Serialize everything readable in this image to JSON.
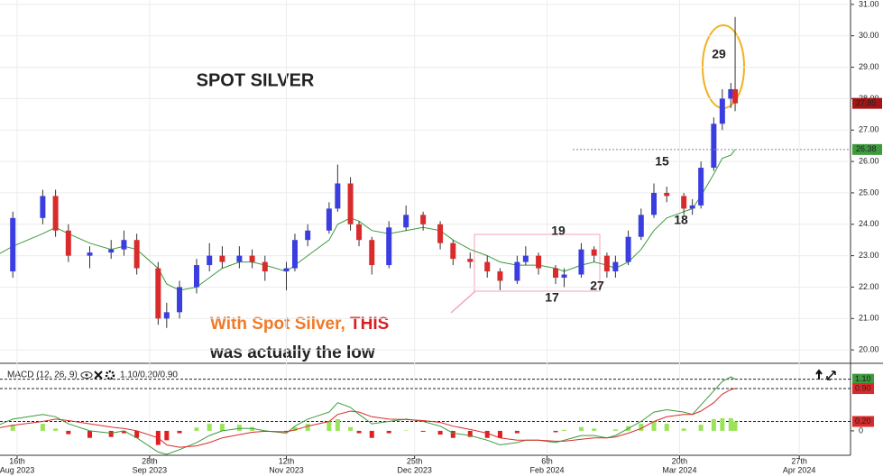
{
  "chart_data": [
    {
      "type": "candlestick",
      "title": "SPOT SILVER",
      "title_color": "#1a9ad6",
      "x": [
        "2023-08-09",
        "2023-08-15",
        "2023-08-24",
        "2023-08-29",
        "2023-09-01",
        "2023-09-08",
        "2023-09-15",
        "2023-09-20",
        "2023-09-25",
        "2023-10-02",
        "2023-10-04",
        "2023-10-09",
        "2023-10-13",
        "2023-10-18",
        "2023-10-23",
        "2023-10-27",
        "2023-11-01",
        "2023-11-06",
        "2023-11-13",
        "2023-11-15",
        "2023-11-20",
        "2023-11-27",
        "2023-11-29",
        "2023-12-04",
        "2023-12-06",
        "2023-12-11",
        "2023-12-15",
        "2023-12-21",
        "2023-12-27",
        "2024-01-02",
        "2024-01-05",
        "2024-01-11",
        "2024-01-17",
        "2024-01-22",
        "2024-01-26",
        "2024-01-30",
        "2024-02-02",
        "2024-02-08",
        "2024-02-12",
        "2024-02-16",
        "2024-02-21",
        "2024-02-26",
        "2024-02-28",
        "2024-03-04",
        "2024-03-07",
        "2024-03-12",
        "2024-03-15",
        "2024-03-21",
        "2024-03-25",
        "2024-03-27",
        "2024-04-01",
        "2024-04-03",
        "2024-04-05",
        "2024-04-08"
      ],
      "open": [
        22.7,
        22.5,
        24.2,
        24.9,
        23.8,
        23.0,
        23.1,
        23.2,
        23.5,
        22.6,
        21.0,
        21.2,
        22.0,
        22.7,
        23.0,
        22.8,
        23.0,
        22.8,
        22.5,
        22.6,
        23.5,
        23.8,
        24.5,
        25.3,
        24.0,
        23.5,
        22.7,
        23.9,
        24.3,
        24.0,
        23.4,
        22.9,
        22.8,
        22.5,
        22.2,
        22.8,
        23.0,
        22.6,
        22.3,
        22.4,
        23.2,
        23.0,
        22.5,
        22.8,
        23.6,
        24.3,
        25.0,
        24.9,
        24.5,
        24.6,
        25.8,
        27.2,
        28.0,
        28.3
      ],
      "high": [
        22.9,
        24.4,
        25.1,
        25.1,
        24.0,
        23.3,
        23.5,
        23.8,
        23.7,
        22.8,
        21.5,
        22.2,
        22.9,
        23.4,
        23.3,
        23.3,
        23.2,
        23.0,
        22.8,
        23.7,
        24.0,
        24.7,
        25.9,
        25.5,
        24.1,
        23.6,
        24.1,
        24.6,
        24.4,
        24.1,
        23.5,
        23.1,
        23.0,
        22.6,
        23.0,
        23.3,
        23.1,
        22.7,
        22.6,
        23.4,
        23.3,
        23.1,
        23.0,
        23.8,
        24.5,
        25.3,
        25.2,
        25.0,
        24.8,
        26.0,
        27.4,
        28.3,
        28.5,
        30.6
      ],
      "low": [
        22.3,
        22.3,
        24.0,
        23.6,
        22.8,
        22.6,
        22.9,
        23.0,
        22.4,
        20.8,
        20.7,
        21.0,
        21.8,
        22.5,
        22.6,
        22.6,
        22.6,
        22.2,
        21.9,
        22.5,
        23.3,
        23.7,
        24.4,
        23.8,
        23.3,
        22.4,
        22.6,
        23.8,
        23.8,
        23.2,
        22.7,
        22.6,
        22.3,
        21.9,
        22.1,
        22.7,
        22.4,
        22.1,
        22.0,
        22.3,
        22.8,
        22.3,
        22.3,
        22.7,
        23.5,
        24.2,
        24.7,
        24.3,
        24.3,
        24.5,
        25.7,
        27.0,
        27.7,
        27.6
      ],
      "close": [
        22.5,
        24.2,
        24.9,
        23.8,
        23.0,
        23.1,
        23.2,
        23.5,
        22.6,
        21.0,
        21.2,
        22.0,
        22.7,
        23.0,
        22.8,
        23.0,
        22.8,
        22.5,
        22.6,
        23.5,
        23.8,
        24.5,
        25.3,
        24.0,
        23.5,
        22.7,
        23.9,
        24.3,
        24.0,
        23.4,
        22.9,
        22.8,
        22.5,
        22.2,
        22.8,
        23.0,
        22.6,
        22.3,
        22.4,
        23.2,
        23.0,
        22.5,
        22.8,
        23.6,
        24.3,
        25.0,
        24.9,
        24.5,
        24.6,
        25.8,
        27.2,
        28.0,
        28.3,
        27.85
      ],
      "up_color": "#3a3ee0",
      "down_color": "#d92b2b",
      "ma": {
        "color": "#3d9a3d",
        "values": [
          23.0,
          23.3,
          23.7,
          23.9,
          23.7,
          23.4,
          23.2,
          23.3,
          23.2,
          22.6,
          22.1,
          21.9,
          22.0,
          22.3,
          22.6,
          22.8,
          22.8,
          22.7,
          22.5,
          22.7,
          23.0,
          23.5,
          24.0,
          24.2,
          24.1,
          23.8,
          23.7,
          23.8,
          23.9,
          23.8,
          23.5,
          23.2,
          23.0,
          22.8,
          22.7,
          22.7,
          22.7,
          22.6,
          22.5,
          22.7,
          22.8,
          22.7,
          22.6,
          22.8,
          23.2,
          23.8,
          24.2,
          24.4,
          24.5,
          24.9,
          25.6,
          26.1,
          26.2,
          26.38
        ]
      },
      "last_price": 27.85,
      "last_price_color": "#a31515",
      "ma_last": 26.38,
      "ma_last_color": "#3d9a3d",
      "xlim": [
        "2023-08-10",
        "2024-05-15"
      ],
      "xticks": [
        {
          "value": "2023-08-16",
          "label": "16th",
          "sublabel": "Aug 2023"
        },
        {
          "value": "2023-09-28",
          "label": "28th",
          "sublabel": "Sep 2023"
        },
        {
          "value": "2023-11-12",
          "label": "12th",
          "sublabel": "Nov 2023"
        },
        {
          "value": "2023-12-25",
          "label": "25th",
          "sublabel": "Dec 2023"
        },
        {
          "value": "2024-02-06",
          "label": "6th",
          "sublabel": "Feb 2024"
        },
        {
          "value": "2024-03-20",
          "label": "20th",
          "sublabel": "Mar 2024"
        },
        {
          "value": "2024-04-27",
          "label": "27th",
          "sublabel": "Apr 2024"
        }
      ],
      "ylim": [
        19.66,
        31.14
      ],
      "yticks": [
        {
          "value": 20,
          "label": "20.00"
        },
        {
          "value": 21,
          "label": "21.00"
        },
        {
          "value": 22,
          "label": "22.00"
        },
        {
          "value": 23,
          "label": "23.00"
        },
        {
          "value": 24,
          "label": "24.00"
        },
        {
          "value": 25,
          "label": "25.00"
        },
        {
          "value": 26,
          "label": "26.00"
        },
        {
          "value": 27,
          "label": "27.00"
        },
        {
          "value": 28,
          "label": "28.00"
        },
        {
          "value": 29,
          "label": "29.00"
        },
        {
          "value": 30,
          "label": "30.00"
        },
        {
          "value": 31,
          "label": "31.00"
        }
      ],
      "grid": true,
      "annotations": [
        {
          "text": "29",
          "color": "#f07a28"
        },
        {
          "text": "15",
          "color": "#f07a28"
        },
        {
          "text": "18",
          "color": "#f07a28"
        },
        {
          "text": "19",
          "color": "#1a9ad6"
        },
        {
          "text": "17",
          "color": "#1a9ad6"
        },
        {
          "text": "27",
          "color": "#1a9ad6"
        },
        {
          "text": "With Spot Silver, ",
          "color": "#f07a28"
        },
        {
          "text": "THIS",
          "color": "#d81e1e"
        },
        {
          "text": "was actually the low",
          "color": "#f4a3c0"
        }
      ]
    },
    {
      "type": "macd",
      "title": "MACD (12, 26, 9)",
      "readout": "1.10/0.20/0.90",
      "macd": {
        "color": "#3d9a3d",
        "values": [
          0.1,
          0.25,
          0.35,
          0.3,
          0.15,
          0.0,
          -0.05,
          0.0,
          -0.15,
          -0.45,
          -0.5,
          -0.4,
          -0.25,
          -0.1,
          0.0,
          0.05,
          0.05,
          0.0,
          -0.05,
          0.1,
          0.25,
          0.4,
          0.6,
          0.5,
          0.35,
          0.15,
          0.2,
          0.25,
          0.2,
          0.1,
          -0.05,
          -0.1,
          -0.2,
          -0.3,
          -0.25,
          -0.2,
          -0.2,
          -0.25,
          -0.2,
          -0.1,
          -0.1,
          -0.15,
          -0.1,
          0.05,
          0.2,
          0.4,
          0.45,
          0.4,
          0.35,
          0.55,
          0.85,
          1.05,
          1.15,
          1.1
        ]
      },
      "signal": {
        "color": "#d92b2b",
        "values": [
          0.05,
          0.12,
          0.2,
          0.25,
          0.22,
          0.15,
          0.08,
          0.05,
          0.0,
          -0.15,
          -0.3,
          -0.35,
          -0.32,
          -0.25,
          -0.15,
          -0.08,
          -0.03,
          -0.01,
          -0.02,
          0.02,
          0.1,
          0.2,
          0.35,
          0.42,
          0.4,
          0.3,
          0.25,
          0.24,
          0.22,
          0.18,
          0.1,
          0.03,
          -0.05,
          -0.15,
          -0.2,
          -0.2,
          -0.2,
          -0.22,
          -0.22,
          -0.18,
          -0.15,
          -0.15,
          -0.13,
          -0.05,
          0.05,
          0.2,
          0.3,
          0.35,
          0.35,
          0.42,
          0.6,
          0.78,
          0.88,
          0.9
        ]
      },
      "histogram": {
        "pos_color": "#9be35a",
        "neg_color": "#e02020",
        "values": [
          0.05,
          0.13,
          0.15,
          0.05,
          -0.07,
          -0.15,
          -0.13,
          -0.05,
          -0.15,
          -0.3,
          -0.2,
          -0.05,
          0.07,
          0.15,
          0.15,
          0.13,
          0.08,
          0.01,
          -0.03,
          0.08,
          0.15,
          0.2,
          0.25,
          0.08,
          -0.05,
          -0.15,
          -0.05,
          0.01,
          -0.02,
          -0.08,
          -0.15,
          -0.13,
          -0.15,
          -0.15,
          -0.05,
          0,
          0,
          -0.03,
          0.02,
          0.08,
          0.05,
          0,
          0.03,
          0.1,
          0.15,
          0.2,
          0.15,
          0.05,
          0,
          0.13,
          0.25,
          0.27,
          0.27,
          0.2
        ]
      },
      "ylim": [
        -0.52,
        1.4
      ],
      "yticks": [
        0
      ],
      "levels": [
        {
          "value": 1.1,
          "label": "1.10",
          "color": "#3d9a3d"
        },
        {
          "value": 0.9,
          "label": "0.90",
          "color": "#d92b2b"
        },
        {
          "value": 0.2,
          "label": "0.20",
          "color": "#d92b2b"
        }
      ]
    }
  ]
}
